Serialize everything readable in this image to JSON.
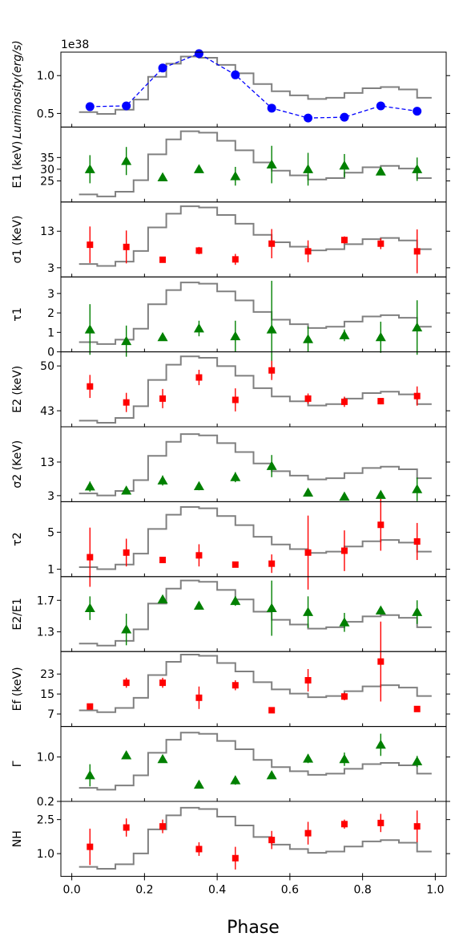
{
  "figure": {
    "xlabel": "Phase",
    "xticks": [
      0.0,
      0.2,
      0.4,
      0.6,
      0.8,
      1.0
    ],
    "xtick_labels": [
      "0.0",
      "0.2",
      "0.4",
      "0.6",
      "0.8",
      "1.0"
    ],
    "xlim": [
      -0.03,
      1.03
    ],
    "colors": {
      "green": "#008000",
      "red": "#ff0000",
      "blue": "#0000ff",
      "step": "#808080"
    }
  },
  "chart_data": [
    {
      "type": "line",
      "ylabel": "Luminosity(erg/s)",
      "scale_label": "1e38",
      "ylim": [
        0.32,
        1.31
      ],
      "yticks": [
        0.5,
        1.0
      ],
      "ytick_labels": [
        "0.5",
        "1.0"
      ],
      "marker": "circle",
      "color": "blue",
      "dashed": true,
      "x": [
        0.05,
        0.15,
        0.25,
        0.35,
        0.45,
        0.55,
        0.65,
        0.75,
        0.85,
        0.95
      ],
      "y": [
        0.59,
        0.6,
        1.1,
        1.29,
        1.01,
        0.57,
        0.44,
        0.45,
        0.6,
        0.53
      ],
      "yerr": [
        0,
        0,
        0,
        0,
        0,
        0,
        0,
        0,
        0,
        0
      ],
      "profile_lo": 0.47,
      "profile_hi": 1.26
    },
    {
      "type": "scatter",
      "ylabel": "E1 (keV)",
      "ylim": [
        16,
        48
      ],
      "yticks": [
        25,
        30,
        35
      ],
      "ytick_labels": [
        "25",
        "30",
        "35"
      ],
      "marker": "triangle",
      "color": "green",
      "x": [
        0.05,
        0.15,
        0.25,
        0.35,
        0.45,
        0.55,
        0.65,
        0.75,
        0.85,
        0.95
      ],
      "y": [
        30,
        33.5,
        26.5,
        30,
        27,
        32,
        30,
        31.5,
        29,
        30
      ],
      "yerr": [
        6,
        6,
        0.5,
        1.5,
        4,
        8,
        7,
        5,
        1.5,
        5
      ],
      "profile_lo": 17.5,
      "profile_hi": 46.5
    },
    {
      "type": "scatter",
      "ylabel": "σ1 (KeV)",
      "ylim": [
        0.5,
        21
      ],
      "yticks": [
        3,
        13
      ],
      "ytick_labels": [
        "3",
        "13"
      ],
      "marker": "square",
      "color": "red",
      "x": [
        0.05,
        0.15,
        0.25,
        0.35,
        0.45,
        0.55,
        0.65,
        0.75,
        0.85,
        0.95
      ],
      "y": [
        9.3,
        8.7,
        5.2,
        7.7,
        5.3,
        9.6,
        7.5,
        10.6,
        9.6,
        7.5
      ],
      "yerr": [
        5,
        4.5,
        0.5,
        1,
        1.5,
        4,
        3,
        1,
        1.5,
        6
      ],
      "profile_lo": 3,
      "profile_hi": 20
    },
    {
      "type": "scatter",
      "ylabel": "τ1",
      "ylim": [
        0,
        3.85
      ],
      "yticks": [
        0,
        1,
        2,
        3
      ],
      "ytick_labels": [
        "0",
        "1",
        "2",
        "3"
      ],
      "marker": "triangle",
      "color": "green",
      "x": [
        0.05,
        0.15,
        0.25,
        0.35,
        0.45,
        0.55,
        0.65,
        0.75,
        0.85,
        0.95
      ],
      "y": [
        1.15,
        0.55,
        0.75,
        1.2,
        0.8,
        1.15,
        0.65,
        0.85,
        0.75,
        1.25
      ],
      "yerr": [
        1.3,
        0.8,
        0.1,
        0.4,
        0.8,
        2.5,
        0.65,
        0.3,
        0.8,
        1.4
      ],
      "profile_lo": 0.3,
      "profile_hi": 3.6
    },
    {
      "type": "scatter",
      "ylabel": "E2 (keV)",
      "ylim": [
        40.5,
        52.2
      ],
      "yticks": [
        43,
        50
      ],
      "ytick_labels": [
        "43",
        "50"
      ],
      "marker": "square",
      "color": "red",
      "x": [
        0.05,
        0.15,
        0.25,
        0.35,
        0.45,
        0.55,
        0.65,
        0.75,
        0.85,
        0.95
      ],
      "y": [
        46.8,
        44.3,
        44.9,
        48.2,
        44.7,
        49.3,
        44.9,
        44.4,
        44.5,
        45.3
      ],
      "yerr": [
        1.8,
        1.5,
        1.5,
        1.2,
        1.8,
        1.5,
        0.8,
        0.8,
        0.5,
        1.5
      ],
      "profile_lo": 40.8,
      "profile_hi": 51.6
    },
    {
      "type": "scatter",
      "ylabel": "σ2 (KeV)",
      "ylim": [
        1.2,
        23.5
      ],
      "yticks": [
        3,
        13
      ],
      "ytick_labels": [
        "3",
        "13"
      ],
      "marker": "triangle",
      "color": "green",
      "x": [
        0.05,
        0.15,
        0.25,
        0.35,
        0.45,
        0.55,
        0.65,
        0.75,
        0.85,
        0.95
      ],
      "y": [
        5.7,
        4.5,
        7.5,
        5.8,
        8.5,
        11.8,
        3.9,
        2.7,
        3.2,
        4.9
      ],
      "yerr": [
        1.5,
        0.8,
        1.5,
        1.2,
        1.5,
        3.3,
        1,
        0.5,
        0.5,
        3.5
      ],
      "profile_lo": 2.5,
      "profile_hi": 21.5
    },
    {
      "type": "scatter",
      "ylabel": "τ2",
      "ylim": [
        0.2,
        8.3
      ],
      "yticks": [
        1,
        5
      ],
      "ytick_labels": [
        "1",
        "5"
      ],
      "marker": "square",
      "color": "red",
      "x": [
        0.05,
        0.15,
        0.25,
        0.35,
        0.45,
        0.55,
        0.65,
        0.75,
        0.85,
        0.95
      ],
      "y": [
        2.3,
        2.8,
        2.0,
        2.5,
        1.5,
        1.6,
        2.8,
        3.0,
        5.8,
        4.0
      ],
      "yerr": [
        3.2,
        1.5,
        0.3,
        1.2,
        0.3,
        1.0,
        4.0,
        2.2,
        2.8,
        2.0
      ],
      "profile_lo": 0.8,
      "profile_hi": 7.8
    },
    {
      "type": "scatter",
      "ylabel": "E2/E1",
      "ylim": [
        1.05,
        2.0
      ],
      "yticks": [
        1.3,
        1.7
      ],
      "ytick_labels": [
        "1.3",
        "1.7"
      ],
      "marker": "triangle",
      "color": "green",
      "x": [
        0.05,
        0.15,
        0.25,
        0.35,
        0.45,
        0.55,
        0.65,
        0.75,
        0.85,
        0.95
      ],
      "y": [
        1.6,
        1.33,
        1.71,
        1.63,
        1.69,
        1.6,
        1.55,
        1.42,
        1.57,
        1.55
      ],
      "yerr": [
        0.15,
        0.2,
        0.03,
        0.04,
        0.06,
        0.35,
        0.2,
        0.12,
        0.04,
        0.15
      ],
      "profile_lo": 1.1,
      "profile_hi": 1.96
    },
    {
      "type": "scatter",
      "ylabel": "Ef (keV)",
      "ylim": [
        2,
        32
      ],
      "yticks": [
        7,
        15,
        23
      ],
      "ytick_labels": [
        "7",
        "15",
        "23"
      ],
      "marker": "square",
      "color": "red",
      "x": [
        0.05,
        0.15,
        0.25,
        0.35,
        0.45,
        0.55,
        0.65,
        0.75,
        0.85,
        0.95
      ],
      "y": [
        10,
        19.5,
        19.5,
        13.5,
        18.5,
        8.5,
        20.5,
        14,
        28,
        9
      ],
      "yerr": [
        0.5,
        2,
        2,
        4.5,
        2,
        0.5,
        4.5,
        1.5,
        16,
        0.5
      ],
      "profile_lo": 7,
      "profile_hi": 31
    },
    {
      "type": "scatter",
      "ylabel": "Γ",
      "ylim": [
        0.2,
        1.55
      ],
      "yticks": [
        0.2,
        1.0
      ],
      "ytick_labels": [
        "0.2",
        "1.0"
      ],
      "marker": "triangle",
      "color": "green",
      "x": [
        0.05,
        0.15,
        0.25,
        0.35,
        0.45,
        0.55,
        0.65,
        0.75,
        0.85,
        0.95
      ],
      "y": [
        0.67,
        1.03,
        0.96,
        0.5,
        0.58,
        0.67,
        0.97,
        0.96,
        1.22,
        0.92
      ],
      "yerr": [
        0.2,
        0.05,
        0.05,
        0.03,
        0.08,
        0.05,
        0.08,
        0.12,
        0.2,
        0.1
      ],
      "profile_lo": 0.38,
      "profile_hi": 1.45
    },
    {
      "type": "scatter",
      "ylabel": "NH",
      "ylim": [
        0.0,
        3.3
      ],
      "yticks": [
        1.0,
        2.5
      ],
      "ytick_labels": [
        "1.0",
        "2.5"
      ],
      "marker": "square",
      "color": "red",
      "x": [
        0.05,
        0.15,
        0.25,
        0.35,
        0.45,
        0.55,
        0.65,
        0.75,
        0.85,
        0.95
      ],
      "y": [
        1.3,
        2.15,
        2.2,
        1.2,
        0.8,
        1.6,
        1.9,
        2.3,
        2.35,
        2.2
      ],
      "yerr": [
        0.8,
        0.4,
        0.3,
        0.3,
        0.5,
        0.4,
        0.5,
        0.2,
        0.4,
        0.7
      ],
      "profile_lo": 0.25,
      "profile_hi": 3.05
    }
  ],
  "profile": {
    "phase_edges": [
      0.02,
      0.07,
      0.12,
      0.17,
      0.21,
      0.26,
      0.3,
      0.35,
      0.4,
      0.45,
      0.5,
      0.55,
      0.6,
      0.65,
      0.7,
      0.75,
      0.8,
      0.85,
      0.9,
      0.95,
      0.99
    ],
    "levels": [
      0.06,
      0.03,
      0.1,
      0.27,
      0.65,
      0.87,
      0.99,
      0.97,
      0.85,
      0.71,
      0.53,
      0.41,
      0.34,
      0.28,
      0.3,
      0.38,
      0.46,
      0.48,
      0.44,
      0.3
    ]
  }
}
